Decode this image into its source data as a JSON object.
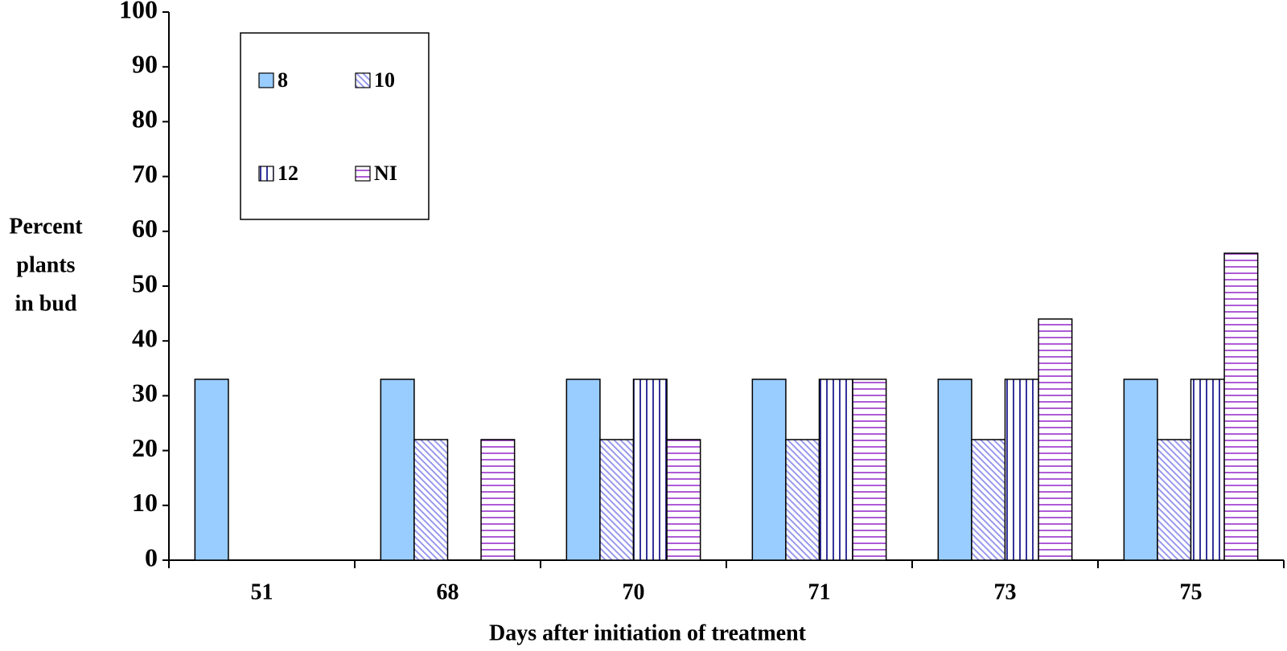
{
  "chart_data": {
    "type": "bar",
    "xlabel": "Days after initiation of treatment",
    "ylabel": [
      "Percent",
      "plants",
      "in bud"
    ],
    "categories": [
      "51",
      "68",
      "70",
      "71",
      "73",
      "75"
    ],
    "series": [
      {
        "name": "8",
        "color": "#99ccff",
        "pattern": "solid",
        "values": [
          33,
          33,
          33,
          33,
          33,
          33
        ]
      },
      {
        "name": "10",
        "color": "#9999ee",
        "pattern": "diagonal",
        "values": [
          0,
          22,
          22,
          22,
          22,
          22
        ]
      },
      {
        "name": "12",
        "color": "#000080",
        "pattern": "vertical",
        "values": [
          0,
          0,
          33,
          33,
          33,
          33
        ]
      },
      {
        "name": "NI",
        "color": "#9933cc",
        "pattern": "horizontal",
        "values": [
          0,
          22,
          22,
          33,
          44,
          56
        ]
      }
    ],
    "ylim": [
      0,
      100
    ],
    "yticks": [
      0,
      10,
      20,
      30,
      40,
      50,
      60,
      70,
      80,
      90,
      100
    ],
    "grid": false,
    "legend": "upper left"
  }
}
